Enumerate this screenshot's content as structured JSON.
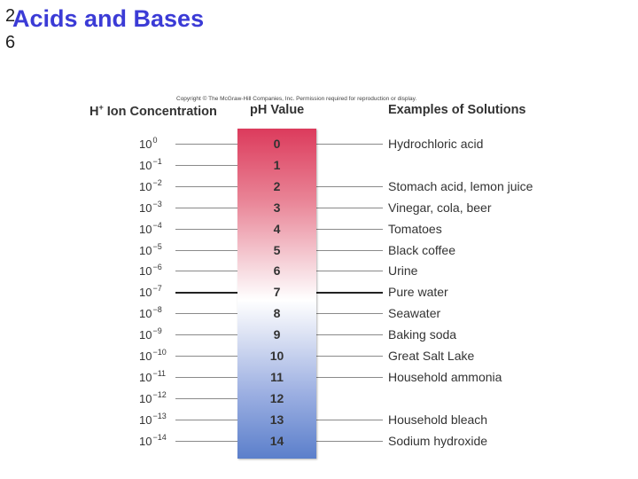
{
  "slide": {
    "number_line1": "2",
    "number_line2": "6",
    "title": "Acids and Bases"
  },
  "figure": {
    "copyright": "Copyright © The McGraw-Hill Companies, Inc. Permission required for reproduction or display.",
    "headers": {
      "concentration": "H",
      "concentration_sup": "+",
      "concentration_rest": " Ion Concentration",
      "ph": "pH Value",
      "examples": "Examples of Solutions"
    },
    "rows": [
      {
        "base": "10",
        "exp": "0",
        "ph": "0",
        "example": "Hydrochloric acid"
      },
      {
        "base": "10",
        "exp": "−1",
        "ph": "1",
        "example": ""
      },
      {
        "base": "10",
        "exp": "−2",
        "ph": "2",
        "example": "Stomach acid, lemon juice"
      },
      {
        "base": "10",
        "exp": "−3",
        "ph": "3",
        "example": "Vinegar, cola, beer"
      },
      {
        "base": "10",
        "exp": "−4",
        "ph": "4",
        "example": "Tomatoes"
      },
      {
        "base": "10",
        "exp": "−5",
        "ph": "5",
        "example": "Black coffee"
      },
      {
        "base": "10",
        "exp": "−6",
        "ph": "6",
        "example": "Urine"
      },
      {
        "base": "10",
        "exp": "−7",
        "ph": "7",
        "example": "Pure water"
      },
      {
        "base": "10",
        "exp": "−8",
        "ph": "8",
        "example": "Seawater"
      },
      {
        "base": "10",
        "exp": "−9",
        "ph": "9",
        "example": "Baking soda"
      },
      {
        "base": "10",
        "exp": "−10",
        "ph": "10",
        "example": "Great Salt Lake"
      },
      {
        "base": "10",
        "exp": "−11",
        "ph": "11",
        "example": "Household ammonia"
      },
      {
        "base": "10",
        "exp": "−12",
        "ph": "12",
        "example": ""
      },
      {
        "base": "10",
        "exp": "−13",
        "ph": "13",
        "example": "Household bleach"
      },
      {
        "base": "10",
        "exp": "−14",
        "ph": "14",
        "example": "Sodium hydroxide"
      }
    ]
  }
}
